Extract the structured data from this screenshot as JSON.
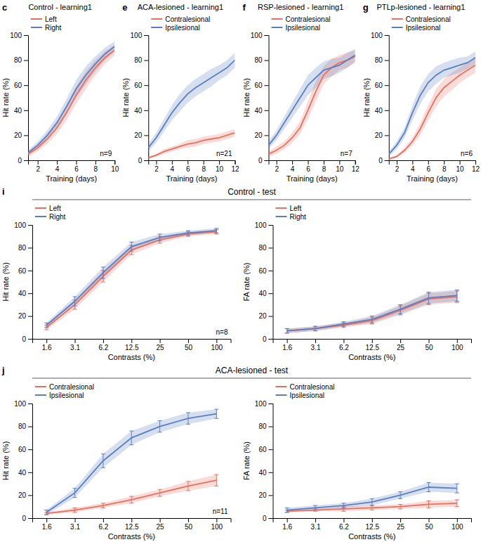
{
  "chart_data": [
    {
      "type": "line",
      "title": "Control - learning1",
      "xlabel": "Training (days)",
      "ylabel": "Hit rate (%)",
      "x": [
        1,
        2,
        3,
        4,
        5,
        6,
        7,
        8,
        9,
        10
      ],
      "xlim": [
        1,
        10
      ],
      "xticks": [
        2,
        4,
        6,
        8,
        10
      ],
      "ylim": [
        0,
        100
      ],
      "yticks": [
        0,
        20,
        40,
        60,
        80,
        100
      ],
      "legend": "upper left",
      "annotations": [
        "c",
        "n=9"
      ],
      "series": [
        {
          "name": "Left",
          "color": "#E87060",
          "values": [
            5,
            10,
            17,
            26,
            38,
            52,
            64,
            74,
            82,
            88
          ],
          "errors": [
            2,
            3,
            4,
            5,
            6,
            7,
            7,
            6,
            5,
            4
          ]
        },
        {
          "name": "Right",
          "color": "#5A7EC0",
          "values": [
            6,
            12,
            20,
            30,
            43,
            57,
            68,
            77,
            85,
            91
          ],
          "errors": [
            2,
            3,
            4,
            5,
            6,
            7,
            7,
            6,
            5,
            4
          ]
        }
      ]
    },
    {
      "type": "line",
      "title": "ACA-lesioned - learning1",
      "xlabel": "Training (days)",
      "ylabel": "Hit rate (%)",
      "x": [
        1,
        2,
        3,
        4,
        5,
        6,
        7,
        8,
        9,
        10,
        11,
        12
      ],
      "xlim": [
        1,
        12
      ],
      "xticks": [
        2,
        4,
        6,
        8,
        10,
        12
      ],
      "ylim": [
        0,
        100
      ],
      "yticks": [
        0,
        20,
        40,
        60,
        80,
        100
      ],
      "legend": "upper left",
      "annotations": [
        "e",
        "n=21"
      ],
      "series": [
        {
          "name": "Contralesional",
          "color": "#E87060",
          "values": [
            2,
            4,
            7,
            9,
            11,
            13,
            14,
            16,
            17,
            18,
            20,
            22
          ],
          "errors": [
            1,
            1,
            2,
            2,
            2,
            3,
            3,
            3,
            3,
            3,
            3,
            3
          ]
        },
        {
          "name": "Ipsilesional",
          "color": "#5A7EC0",
          "values": [
            10,
            18,
            28,
            38,
            46,
            53,
            58,
            62,
            66,
            70,
            74,
            80
          ],
          "errors": [
            3,
            4,
            5,
            6,
            7,
            7,
            7,
            7,
            7,
            6,
            6,
            6
          ]
        }
      ]
    },
    {
      "type": "line",
      "title": "RSP-lesioned - learning1",
      "xlabel": "Training (days)",
      "ylabel": "Hit rate (%)",
      "x": [
        1,
        2,
        3,
        4,
        5,
        6,
        7,
        8,
        9,
        10,
        11,
        12
      ],
      "xlim": [
        1,
        12
      ],
      "xticks": [
        2,
        4,
        6,
        8,
        10,
        12
      ],
      "ylim": [
        0,
        100
      ],
      "yticks": [
        0,
        20,
        40,
        60,
        80,
        100
      ],
      "legend": "upper left",
      "annotations": [
        "f",
        "n=7"
      ],
      "series": [
        {
          "name": "Contralesional",
          "color": "#E87060",
          "values": [
            5,
            8,
            12,
            18,
            26,
            40,
            55,
            68,
            74,
            78,
            80,
            83
          ],
          "errors": [
            2,
            3,
            3,
            4,
            5,
            7,
            8,
            7,
            7,
            6,
            6,
            5
          ]
        },
        {
          "name": "Ipsilesional",
          "color": "#5A7EC0",
          "values": [
            12,
            20,
            30,
            40,
            50,
            60,
            66,
            72,
            74,
            76,
            80,
            84
          ],
          "errors": [
            3,
            4,
            5,
            6,
            7,
            8,
            8,
            7,
            7,
            6,
            6,
            5
          ]
        }
      ]
    },
    {
      "type": "line",
      "title": "PTLp-lesioned - learning1",
      "xlabel": "Training (days)",
      "ylabel": "Hit rate (%)",
      "x": [
        1,
        2,
        3,
        4,
        5,
        6,
        7,
        8,
        9,
        10,
        11,
        12
      ],
      "xlim": [
        1,
        12
      ],
      "xticks": [
        2,
        4,
        6,
        8,
        10,
        12
      ],
      "ylim": [
        0,
        100
      ],
      "yticks": [
        0,
        20,
        40,
        60,
        80,
        100
      ],
      "legend": "upper left",
      "annotations": [
        "g",
        "n=6"
      ],
      "series": [
        {
          "name": "Contralesional",
          "color": "#E87060",
          "values": [
            1,
            3,
            8,
            15,
            25,
            38,
            50,
            58,
            63,
            68,
            72,
            76
          ],
          "errors": [
            1,
            1,
            2,
            3,
            5,
            6,
            7,
            7,
            7,
            6,
            6,
            6
          ]
        },
        {
          "name": "Ipsilesional",
          "color": "#5A7EC0",
          "values": [
            5,
            12,
            22,
            38,
            52,
            62,
            68,
            72,
            74,
            76,
            78,
            82
          ],
          "errors": [
            2,
            3,
            4,
            6,
            7,
            7,
            7,
            6,
            6,
            6,
            5,
            5
          ]
        }
      ]
    },
    {
      "type": "line",
      "title": "Control - test",
      "xlabel": "Contrasts (%)",
      "ylabel": "Hit rate (%)",
      "categories": [
        "1.6",
        "3.1",
        "6.2",
        "12.5",
        "25",
        "50",
        "100"
      ],
      "ylim": [
        0,
        100
      ],
      "yticks": [
        0,
        20,
        40,
        60,
        80,
        100
      ],
      "legend": "upper left",
      "annotations": [
        "i",
        "n=8"
      ],
      "series": [
        {
          "name": "Left",
          "color": "#E87060",
          "values": [
            10,
            30,
            55,
            78,
            87,
            92,
            94
          ],
          "errors": [
            2,
            4,
            5,
            4,
            3,
            2,
            2
          ]
        },
        {
          "name": "Right",
          "color": "#5A7EC0",
          "values": [
            12,
            33,
            58,
            81,
            89,
            93,
            95
          ],
          "errors": [
            2,
            4,
            5,
            4,
            3,
            2,
            2
          ]
        }
      ]
    },
    {
      "type": "line",
      "xlabel": "Contrasts (%)",
      "ylabel": "FA rate (%)",
      "categories": [
        "1.6",
        "3.1",
        "6.2",
        "12.5",
        "25",
        "50",
        "100"
      ],
      "ylim": [
        0,
        100
      ],
      "yticks": [
        0,
        20,
        40,
        60,
        80,
        100
      ],
      "legend": "upper left",
      "series": [
        {
          "name": "Left",
          "color": "#E87060",
          "values": [
            7,
            9,
            12,
            16,
            25,
            35,
            37
          ],
          "errors": [
            2,
            2,
            2,
            3,
            4,
            5,
            5
          ]
        },
        {
          "name": "Right",
          "color": "#5A7EC0",
          "values": [
            7,
            9,
            13,
            17,
            26,
            36,
            38
          ],
          "errors": [
            2,
            2,
            2,
            3,
            4,
            5,
            5
          ]
        }
      ]
    },
    {
      "type": "line",
      "title": "ACA-lesioned - test",
      "xlabel": "Contrasts (%)",
      "ylabel": "Hit rate (%)",
      "categories": [
        "1.6",
        "3.1",
        "6.2",
        "12.5",
        "25",
        "50",
        "100"
      ],
      "ylim": [
        0,
        100
      ],
      "yticks": [
        0,
        20,
        40,
        60,
        80,
        100
      ],
      "legend": "upper left",
      "annotations": [
        "j",
        "n=11"
      ],
      "series": [
        {
          "name": "Contralesional",
          "color": "#E87060",
          "values": [
            4,
            7,
            11,
            16,
            22,
            28,
            33
          ],
          "errors": [
            1,
            2,
            2,
            3,
            3,
            4,
            5
          ]
        },
        {
          "name": "Ipsilesional",
          "color": "#5A7EC0",
          "values": [
            5,
            22,
            50,
            70,
            80,
            87,
            91
          ],
          "errors": [
            2,
            4,
            6,
            6,
            5,
            5,
            4
          ]
        }
      ]
    },
    {
      "type": "line",
      "xlabel": "Contrasts (%)",
      "ylabel": "FA rate (%)",
      "categories": [
        "1.6",
        "3.1",
        "6.2",
        "12.5",
        "25",
        "50",
        "100"
      ],
      "ylim": [
        0,
        100
      ],
      "yticks": [
        0,
        20,
        40,
        60,
        80,
        100
      ],
      "legend": "upper left",
      "series": [
        {
          "name": "Contralesional",
          "color": "#E87060",
          "values": [
            6,
            7,
            8,
            9,
            10,
            12,
            13
          ],
          "errors": [
            1,
            1,
            2,
            2,
            2,
            3,
            3
          ]
        },
        {
          "name": "Ipsilesional",
          "color": "#5A7EC0",
          "values": [
            7,
            9,
            11,
            14,
            20,
            27,
            26
          ],
          "errors": [
            2,
            2,
            2,
            3,
            3,
            4,
            4
          ]
        }
      ]
    }
  ]
}
